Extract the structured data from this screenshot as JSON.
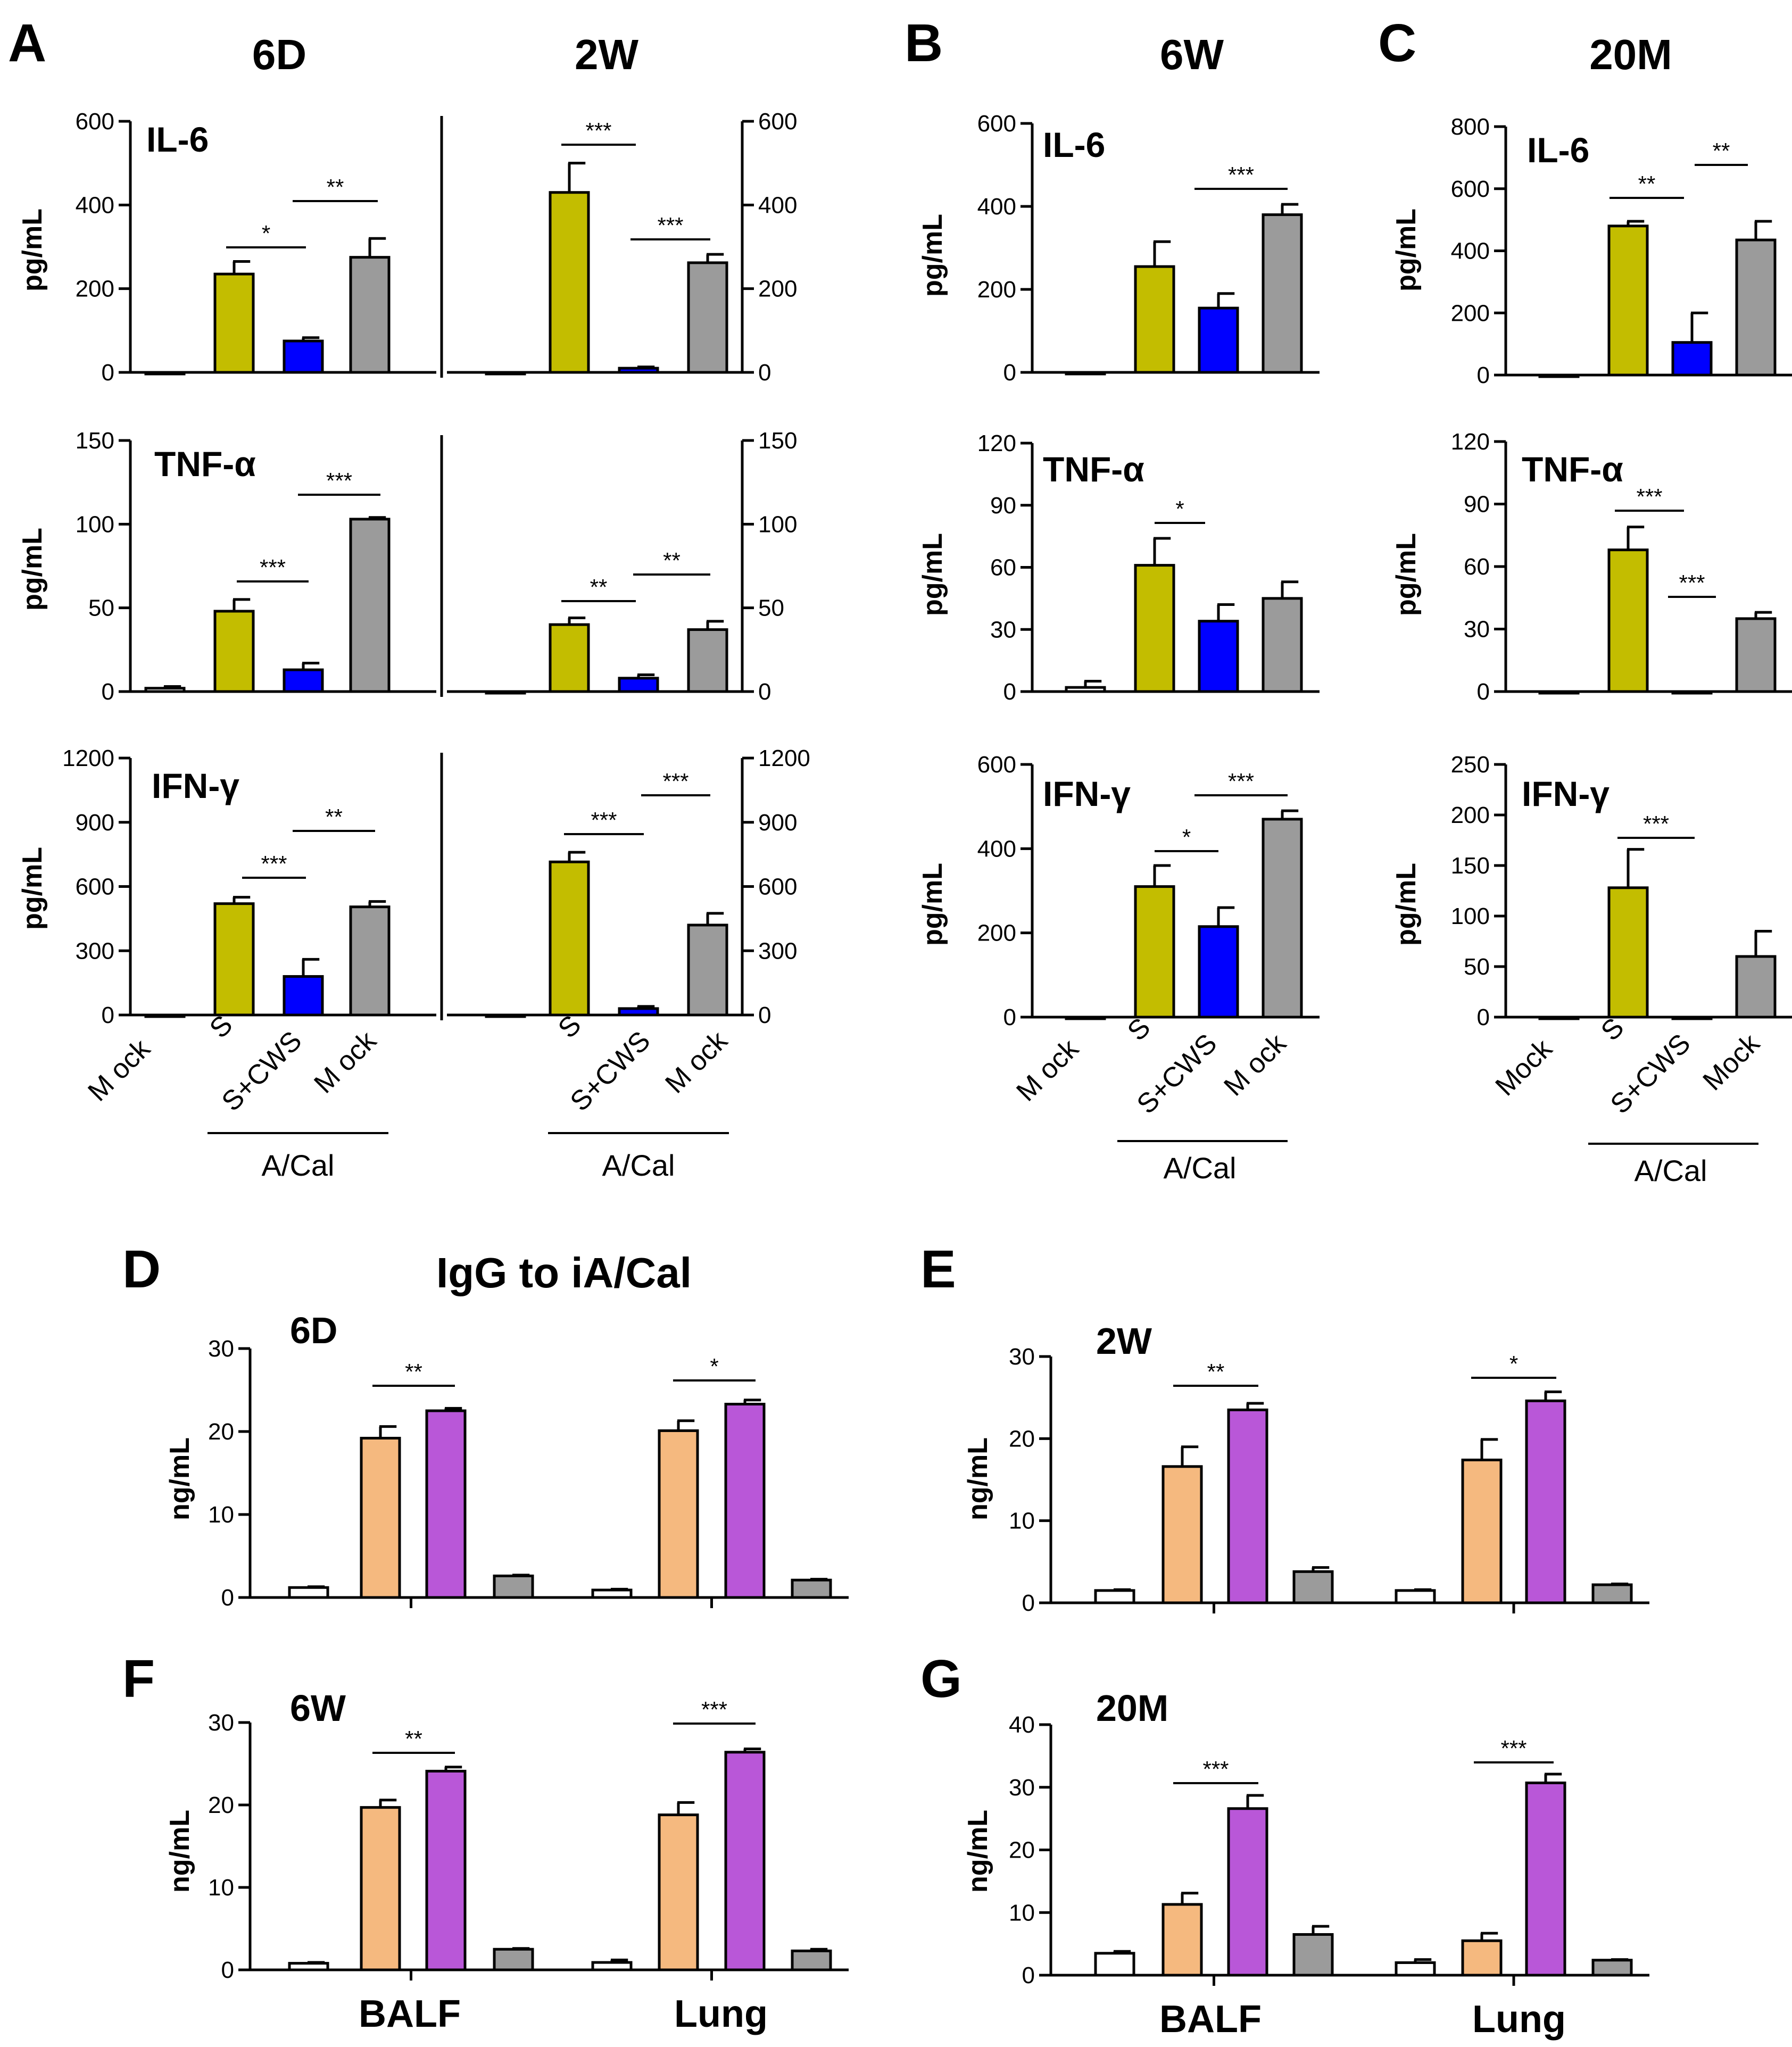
{
  "colors": {
    "mock": "#ffffff",
    "s": "#c3bd00",
    "scws": "#0000ff",
    "mockvirus": "#9b9b9b",
    "orange": "#f5b97f",
    "purple": "#b957d8",
    "axis": "#000000"
  },
  "titles": {
    "letter_a": "A",
    "letter_b": "B",
    "letter_c": "C",
    "letter_d": "D",
    "letter_e": "E",
    "letter_f": "F",
    "letter_g": "G",
    "col_6d": "6D",
    "col_2w": "2W",
    "col_6w": "6W",
    "col_20m": "20M",
    "igg_title": "IgG to iA/Cal"
  },
  "labels": {
    "pg_ml": "pg/mL",
    "ng_ml": "ng/mL",
    "il6": "IL-6",
    "tnf": "TNF-α",
    "ifn": "IFN-γ",
    "mock": "M ock",
    "mock_bc": "Mock",
    "s": "S",
    "scws": "S+CWS",
    "m_ock": "M ock",
    "acal": "A/Cal",
    "balf": "BALF",
    "lung": "Lung"
  },
  "chart_data": [
    {
      "id": "A-IL6",
      "type": "bar",
      "title": "IL-6",
      "ylabel": "pg/mL",
      "ylim": [
        0,
        600
      ],
      "yticks": [
        "0",
        "200",
        "400",
        "600"
      ],
      "groups": [
        {
          "label": "6D",
          "categories": [
            "Mock",
            "S",
            "S+CWS",
            "Mock"
          ],
          "values": [
            0,
            235,
            75,
            275
          ],
          "errors": [
            0,
            30,
            8,
            45
          ]
        },
        {
          "label": "2W",
          "categories": [
            "Mock",
            "S",
            "S+CWS",
            "Mock"
          ],
          "values": [
            0,
            430,
            10,
            262
          ],
          "errors": [
            0,
            70,
            3,
            20
          ]
        }
      ],
      "significance": [
        "*",
        "**",
        "***",
        "***"
      ]
    },
    {
      "id": "A-TNF",
      "type": "bar",
      "title": "TNF-α",
      "ylabel": "pg/mL",
      "ylim": [
        0,
        150
      ],
      "yticks": [
        "0",
        "50",
        "100",
        "150"
      ],
      "groups": [
        {
          "label": "6D",
          "categories": [
            "Mock",
            "S",
            "S+CWS",
            "Mock"
          ],
          "values": [
            2,
            48,
            13,
            103
          ],
          "errors": [
            1,
            7,
            4,
            1
          ]
        },
        {
          "label": "2W",
          "categories": [
            "Mock",
            "S",
            "S+CWS",
            "Mock"
          ],
          "values": [
            0,
            40,
            8,
            37
          ],
          "errors": [
            0,
            4,
            2,
            5
          ]
        }
      ],
      "significance": [
        "***",
        "***",
        "**",
        "**"
      ]
    },
    {
      "id": "A-IFN",
      "type": "bar",
      "title": "IFN-γ",
      "ylabel": "pg/mL",
      "ylim": [
        0,
        1200
      ],
      "yticks": [
        "0",
        "300",
        "600",
        "900",
        "1200"
      ],
      "groups": [
        {
          "label": "6D",
          "categories": [
            "Mock",
            "S",
            "S+CWS",
            "Mock"
          ],
          "values": [
            0,
            520,
            180,
            505
          ],
          "errors": [
            0,
            30,
            80,
            25
          ]
        },
        {
          "label": "2W",
          "categories": [
            "Mock",
            "S",
            "S+CWS",
            "Mock"
          ],
          "values": [
            0,
            715,
            30,
            420
          ],
          "errors": [
            0,
            45,
            10,
            55
          ]
        }
      ],
      "significance": [
        "***",
        "**",
        "***",
        "***"
      ]
    },
    {
      "id": "B-IL6",
      "type": "bar",
      "title": "IL-6",
      "ylabel": "pg/mL",
      "ylim": [
        0,
        600
      ],
      "yticks": [
        "0",
        "200",
        "400",
        "600"
      ],
      "categories": [
        "Mock",
        "S",
        "S+CWS",
        "Mock"
      ],
      "values": [
        0,
        255,
        155,
        380
      ],
      "errors": [
        0,
        60,
        35,
        25
      ],
      "significance": [
        "***"
      ]
    },
    {
      "id": "B-TNF",
      "type": "bar",
      "title": "TNF-α",
      "ylabel": "pg/mL",
      "ylim": [
        0,
        120
      ],
      "yticks": [
        "0",
        "30",
        "60",
        "90",
        "120"
      ],
      "categories": [
        "Mock",
        "S",
        "S+CWS",
        "Mock"
      ],
      "values": [
        2,
        61,
        34,
        45
      ],
      "errors": [
        3,
        13,
        8,
        8
      ],
      "significance": [
        "*"
      ]
    },
    {
      "id": "B-IFN",
      "type": "bar",
      "title": "IFN-γ",
      "ylabel": "pg/mL",
      "ylim": [
        0,
        600
      ],
      "yticks": [
        "0",
        "200",
        "400",
        "600"
      ],
      "categories": [
        "Mock",
        "S",
        "S+CWS",
        "Mock"
      ],
      "values": [
        0,
        310,
        215,
        470
      ],
      "errors": [
        0,
        50,
        45,
        20
      ],
      "significance": [
        "*",
        "***"
      ]
    },
    {
      "id": "C-IL6",
      "type": "bar",
      "title": "IL-6",
      "ylabel": "pg/mL",
      "ylim": [
        0,
        800
      ],
      "yticks": [
        "0",
        "200",
        "400",
        "600",
        "800"
      ],
      "categories": [
        "Mock",
        "S",
        "S+CWS",
        "Mock"
      ],
      "values": [
        0,
        480,
        105,
        435
      ],
      "errors": [
        0,
        15,
        95,
        60
      ],
      "significance": [
        "**",
        "**"
      ]
    },
    {
      "id": "C-TNF",
      "type": "bar",
      "title": "TNF-α",
      "ylabel": "pg/mL",
      "ylim": [
        0,
        120
      ],
      "yticks": [
        "0",
        "30",
        "60",
        "90",
        "120"
      ],
      "categories": [
        "Mock",
        "S",
        "S+CWS",
        "Mock"
      ],
      "values": [
        0,
        68,
        0,
        35
      ],
      "errors": [
        0,
        11,
        0,
        3
      ],
      "significance": [
        "***",
        "***"
      ]
    },
    {
      "id": "C-IFN",
      "type": "bar",
      "title": "IFN-γ",
      "ylabel": "pg/mL",
      "ylim": [
        0,
        250
      ],
      "yticks": [
        "0",
        "50",
        "100",
        "150",
        "200",
        "250"
      ],
      "categories": [
        "Mock",
        "S",
        "S+CWS",
        "Mock"
      ],
      "values": [
        0,
        128,
        0,
        60
      ],
      "errors": [
        0,
        38,
        0,
        25
      ],
      "significance": [
        "***"
      ]
    },
    {
      "id": "D",
      "type": "bar",
      "title": "6D",
      "ylabel": "ng/mL",
      "ylim": [
        0,
        30
      ],
      "yticks": [
        "0",
        "10",
        "20",
        "30"
      ],
      "categories": [
        "BALF",
        "Lung"
      ],
      "series": [
        {
          "name": "white",
          "values": [
            1.2,
            0.9
          ],
          "errors": [
            0.1,
            0.1
          ]
        },
        {
          "name": "orange",
          "values": [
            19.2,
            20.1
          ],
          "errors": [
            1.4,
            1.2
          ]
        },
        {
          "name": "purple",
          "values": [
            22.5,
            23.3
          ],
          "errors": [
            0.3,
            0.5
          ]
        },
        {
          "name": "gray",
          "values": [
            2.6,
            2.1
          ],
          "errors": [
            0.1,
            0.1
          ]
        }
      ],
      "significance": [
        "**",
        "*"
      ]
    },
    {
      "id": "E",
      "type": "bar",
      "title": "2W",
      "ylabel": "ng/mL",
      "ylim": [
        0,
        30
      ],
      "yticks": [
        "0",
        "10",
        "20",
        "30"
      ],
      "categories": [
        "BALF",
        "Lung"
      ],
      "series": [
        {
          "name": "white",
          "values": [
            1.5,
            1.5
          ],
          "errors": [
            0.1,
            0.1
          ]
        },
        {
          "name": "orange",
          "values": [
            16.6,
            17.4
          ],
          "errors": [
            2.4,
            2.5
          ]
        },
        {
          "name": "purple",
          "values": [
            23.5,
            24.6
          ],
          "errors": [
            0.8,
            1.1
          ]
        },
        {
          "name": "gray",
          "values": [
            3.8,
            2.2
          ],
          "errors": [
            0.5,
            0.1
          ]
        }
      ],
      "significance": [
        "**",
        "*"
      ]
    },
    {
      "id": "F",
      "type": "bar",
      "title": "6W",
      "ylabel": "ng/mL",
      "ylim": [
        0,
        30
      ],
      "yticks": [
        "0",
        "10",
        "20",
        "30"
      ],
      "categories": [
        "BALF",
        "Lung"
      ],
      "series": [
        {
          "name": "white",
          "values": [
            0.8,
            0.9
          ],
          "errors": [
            0.1,
            0.3
          ]
        },
        {
          "name": "orange",
          "values": [
            19.7,
            18.8
          ],
          "errors": [
            0.9,
            1.5
          ]
        },
        {
          "name": "purple",
          "values": [
            24.1,
            26.4
          ],
          "errors": [
            0.5,
            0.4
          ]
        },
        {
          "name": "gray",
          "values": [
            2.5,
            2.3
          ],
          "errors": [
            0.1,
            0.2
          ]
        }
      ],
      "significance": [
        "**",
        "***"
      ]
    },
    {
      "id": "G",
      "type": "bar",
      "title": "20M",
      "ylabel": "ng/mL",
      "ylim": [
        0,
        40
      ],
      "yticks": [
        "0",
        "10",
        "20",
        "30",
        "40"
      ],
      "categories": [
        "BALF",
        "Lung"
      ],
      "series": [
        {
          "name": "white",
          "values": [
            3.5,
            2.0
          ],
          "errors": [
            0.3,
            0.5
          ]
        },
        {
          "name": "orange",
          "values": [
            11.3,
            5.5
          ],
          "errors": [
            1.8,
            1.2
          ]
        },
        {
          "name": "purple",
          "values": [
            26.6,
            30.7
          ],
          "errors": [
            2.1,
            1.4
          ]
        },
        {
          "name": "gray",
          "values": [
            6.5,
            2.4
          ],
          "errors": [
            1.3,
            0.1
          ]
        }
      ],
      "significance": [
        "***",
        "***"
      ]
    }
  ]
}
